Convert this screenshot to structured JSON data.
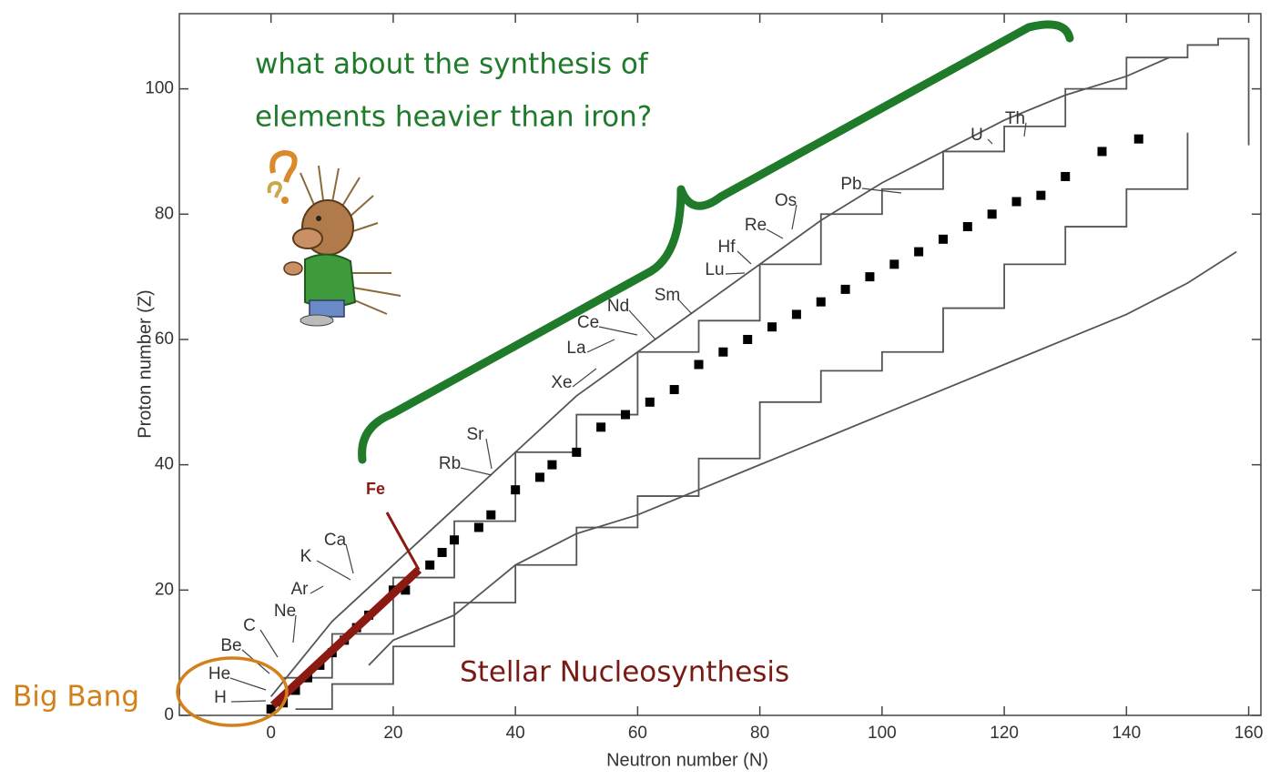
{
  "chart_data": {
    "type": "line",
    "x_label": "Neutron number (N)",
    "y_label": "Proton number (Z)",
    "xlim": [
      -15,
      162
    ],
    "ylim": [
      0,
      112
    ],
    "xticks": [
      0,
      20,
      40,
      60,
      80,
      100,
      120,
      140,
      160
    ],
    "yticks": [
      0,
      20,
      40,
      60,
      80,
      100
    ],
    "series": [
      {
        "style": "line",
        "color": "#555555",
        "x": [
          0,
          10,
          20,
          30,
          40,
          50,
          60,
          70,
          80,
          90,
          100,
          110,
          120,
          130,
          140,
          147
        ],
        "values": [
          3,
          15,
          24,
          33,
          42,
          51,
          58,
          65,
          72,
          79,
          85,
          90,
          95,
          99,
          102,
          105
        ]
      },
      {
        "style": "step",
        "color": "#555555",
        "x": [
          2,
          10,
          20,
          30,
          40,
          50,
          60,
          70,
          80,
          90,
          100,
          110,
          120,
          130,
          140,
          150,
          155,
          160
        ],
        "values": [
          6,
          13,
          22,
          31,
          42,
          48,
          58,
          63,
          72,
          80,
          84,
          90,
          94,
          100,
          105,
          107,
          108,
          91
        ]
      },
      {
        "style": "step",
        "color": "#555555",
        "x": [
          4,
          10,
          20,
          30,
          40,
          50,
          60,
          70,
          80,
          90,
          100,
          110,
          120,
          130,
          140,
          150
        ],
        "values": [
          1,
          5,
          11,
          18,
          24,
          30,
          35,
          41,
          50,
          55,
          58,
          65,
          72,
          78,
          84,
          93
        ]
      },
      {
        "style": "line",
        "color": "#555555",
        "x": [
          16,
          20,
          30,
          40,
          50,
          60,
          70,
          80,
          90,
          100,
          110,
          120,
          130,
          140,
          150,
          158
        ],
        "values": [
          8,
          12,
          16,
          24,
          29,
          32,
          36,
          40,
          44,
          48,
          52,
          56,
          60,
          64,
          69,
          74
        ]
      },
      {
        "style": "square",
        "color": "#000000",
        "x": [
          0,
          2,
          4,
          6,
          8,
          10,
          12,
          14,
          16,
          20,
          22,
          26,
          28,
          30,
          34,
          36,
          40,
          44,
          46,
          50,
          54,
          58,
          62,
          66,
          70,
          74,
          78,
          82,
          86,
          90,
          94,
          98,
          102,
          106,
          110,
          114,
          118,
          122,
          126,
          130,
          136,
          142
        ],
        "values": [
          1,
          2,
          4,
          6,
          8,
          10,
          12,
          14,
          16,
          20,
          20,
          24,
          26,
          28,
          30,
          32,
          36,
          38,
          40,
          42,
          46,
          48,
          50,
          52,
          56,
          58,
          60,
          62,
          64,
          66,
          68,
          70,
          72,
          74,
          76,
          78,
          80,
          82,
          83,
          86,
          90,
          92
        ]
      }
    ],
    "elements": [
      "H",
      "He",
      "Be",
      "C",
      "Ne",
      "Ar",
      "K",
      "Ca",
      "Rb",
      "Sr",
      "Xe",
      "La",
      "Ce",
      "Nd",
      "Sm",
      "Lu",
      "Hf",
      "Re",
      "Os",
      "Pb",
      "U",
      "Th"
    ],
    "annotations": {
      "question": [
        "what about the synthesis of",
        "elements heavier than iron?"
      ],
      "iron": "Fe",
      "big_bang": "Big Bang",
      "stellar": "Stellar Nucleosynthesis"
    }
  }
}
